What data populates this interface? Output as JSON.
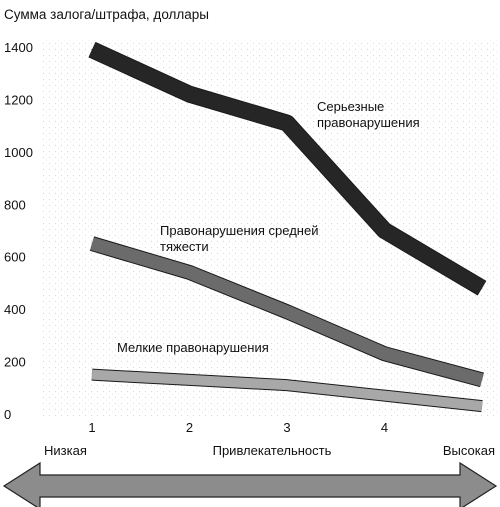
{
  "chart_data": {
    "type": "line",
    "ylabel": "Сумма залога/штрафа, доллары",
    "xlabel": "Привлекательность",
    "x_low_label": "Низкая",
    "x_high_label": "Высокая",
    "categories": [
      "1",
      "2",
      "3",
      "4",
      ""
    ],
    "ylim": [
      0,
      1400
    ],
    "yticks": [
      0,
      200,
      400,
      600,
      800,
      1000,
      1200,
      1400
    ],
    "grid": false,
    "series": [
      {
        "name": "Серьезные правонарушения",
        "label_lines": [
          "Серьезные",
          "правонарушения"
        ],
        "color": "#262626",
        "x": [
          1,
          2,
          3,
          4,
          5
        ],
        "values": [
          1390,
          1220,
          1110,
          700,
          480
        ]
      },
      {
        "name": "Правонарушения средней тяжести",
        "label_lines": [
          "Правонарушения средней",
          "тяжести"
        ],
        "color": "#6b6b6b",
        "x": [
          1,
          2,
          3,
          4,
          5
        ],
        "values": [
          650,
          540,
          390,
          230,
          130
        ]
      },
      {
        "name": "Мелкие правонарушения",
        "label_lines": [
          "Мелкие правонарушения"
        ],
        "color": "#a8a8a8",
        "x": [
          1,
          2,
          3,
          4,
          5
        ],
        "values": [
          150,
          130,
          110,
          70,
          30
        ]
      }
    ]
  }
}
